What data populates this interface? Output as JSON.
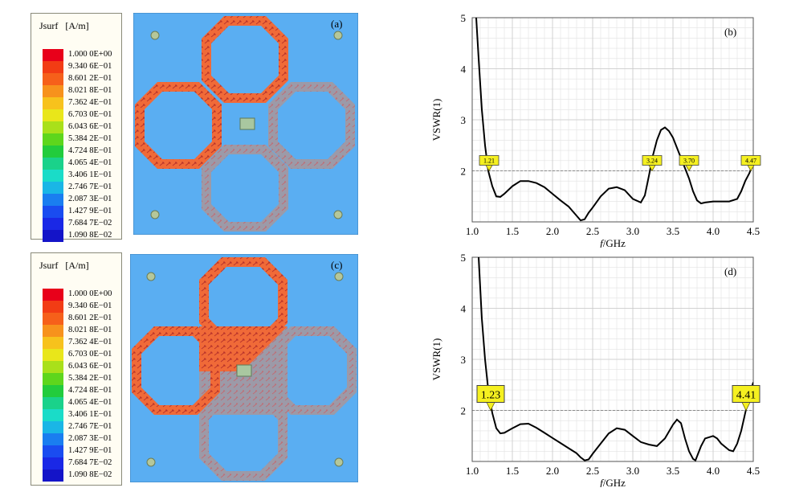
{
  "legend_top": {
    "title": "Jsurf   [A/m]",
    "entries": [
      "1.000 0E+00",
      "9.340 6E−01",
      "8.601 2E−01",
      "8.021 8E−01",
      "7.362 4E−01",
      "6.703 0E−01",
      "6.043 6E−01",
      "5.384 2E−01",
      "4.724 8E−01",
      "4.065 4E−01",
      "3.406 1E−01",
      "2.746 7E−01",
      "2.087 3E−01",
      "1.427 9E−01",
      "7.684 7E−02",
      "1.090 8E−02"
    ]
  },
  "legend_bottom": {
    "title": "Jsurf   [A/m]",
    "entries": [
      "1.000 0E+00",
      "9.340 6E−01",
      "8.601 2E−01",
      "8.021 8E−01",
      "7.362 4E−01",
      "6.703 0E−01",
      "6.043 6E−01",
      "5.384 2E−01",
      "4.724 8E−01",
      "4.065 4E−01",
      "3.406 1E−01",
      "2.746 7E−01",
      "2.087 3E−01",
      "1.427 9E−01",
      "7.684 7E−02",
      "1.090 8E−02"
    ]
  },
  "legend_colors": [
    "#e8001a",
    "#f23c14",
    "#f6601a",
    "#f7921c",
    "#f7c21c",
    "#e9e61a",
    "#a9e01a",
    "#5ed61c",
    "#22cc3c",
    "#1ad28a",
    "#1adcc8",
    "#1ab6e6",
    "#1a7ef0",
    "#1a4cf0",
    "#1a28e6",
    "#1414c8"
  ],
  "sim_a_label": "(a)",
  "sim_c_label": "(c)",
  "colors": {
    "substrate": "#5aaef2",
    "background_metal": "#9c9aa8",
    "hot": "#f06a38",
    "black_curve": "#000000",
    "marker": "#f5f020"
  },
  "chart_data": [
    {
      "type": "line",
      "panel_label": "(b)",
      "ylabel": "VSWR(1)",
      "xlabel_italic": "f",
      "xlabel_rest": "/GHz",
      "xlim": [
        1.0,
        4.5
      ],
      "ylim": [
        1,
        5
      ],
      "xticks": [
        "1.0",
        "1.5",
        "2.0",
        "2.5",
        "3.0",
        "3.5",
        "4.0",
        "4.5"
      ],
      "yticks": [
        "2",
        "3",
        "4",
        "5"
      ],
      "reference_line": 2,
      "grid": true,
      "x": [
        1.05,
        1.08,
        1.12,
        1.16,
        1.2,
        1.25,
        1.3,
        1.35,
        1.4,
        1.5,
        1.6,
        1.7,
        1.8,
        1.9,
        2.0,
        2.1,
        2.2,
        2.3,
        2.35,
        2.4,
        2.45,
        2.5,
        2.6,
        2.7,
        2.8,
        2.9,
        3.0,
        3.1,
        3.15,
        3.2,
        3.25,
        3.3,
        3.35,
        3.4,
        3.45,
        3.5,
        3.55,
        3.6,
        3.65,
        3.7,
        3.75,
        3.8,
        3.85,
        3.9,
        4.0,
        4.1,
        4.2,
        4.3,
        4.35,
        4.4,
        4.45,
        4.47
      ],
      "y": [
        5.0,
        4.2,
        3.2,
        2.5,
        2.0,
        1.7,
        1.5,
        1.49,
        1.55,
        1.7,
        1.8,
        1.8,
        1.76,
        1.68,
        1.55,
        1.42,
        1.3,
        1.12,
        1.03,
        1.05,
        1.18,
        1.28,
        1.5,
        1.65,
        1.68,
        1.62,
        1.45,
        1.38,
        1.52,
        1.9,
        2.3,
        2.6,
        2.8,
        2.85,
        2.78,
        2.65,
        2.45,
        2.25,
        2.05,
        1.85,
        1.6,
        1.42,
        1.36,
        1.38,
        1.4,
        1.4,
        1.4,
        1.45,
        1.6,
        1.8,
        1.95,
        2.03
      ],
      "markers": [
        {
          "x": 1.21,
          "label": "1.21"
        },
        {
          "x": 3.24,
          "label": "3.24"
        },
        {
          "x": 3.7,
          "label": "3.70"
        },
        {
          "x": 4.47,
          "label": "4.47"
        }
      ]
    },
    {
      "type": "line",
      "panel_label": "(d)",
      "ylabel": "VSWR(1)",
      "xlabel_italic": "f",
      "xlabel_rest": "/GHz",
      "xlim": [
        1.0,
        4.5
      ],
      "ylim": [
        1,
        5
      ],
      "xticks": [
        "1.0",
        "1.5",
        "2.0",
        "2.5",
        "3.0",
        "3.5",
        "4.0",
        "4.5"
      ],
      "yticks": [
        "2",
        "3",
        "4",
        "5"
      ],
      "reference_line": 2,
      "grid": true,
      "x": [
        1.08,
        1.12,
        1.16,
        1.2,
        1.25,
        1.3,
        1.35,
        1.4,
        1.5,
        1.6,
        1.7,
        1.8,
        1.9,
        2.0,
        2.1,
        2.2,
        2.3,
        2.35,
        2.4,
        2.45,
        2.5,
        2.6,
        2.7,
        2.8,
        2.9,
        3.0,
        3.1,
        3.2,
        3.3,
        3.4,
        3.5,
        3.55,
        3.6,
        3.65,
        3.7,
        3.75,
        3.78,
        3.85,
        3.9,
        4.0,
        4.05,
        4.1,
        4.2,
        4.25,
        4.3,
        4.35,
        4.4,
        4.45,
        4.5
      ],
      "y": [
        5.0,
        3.8,
        3.0,
        2.4,
        1.95,
        1.65,
        1.55,
        1.56,
        1.65,
        1.73,
        1.74,
        1.66,
        1.56,
        1.46,
        1.36,
        1.26,
        1.16,
        1.08,
        1.02,
        1.04,
        1.15,
        1.35,
        1.55,
        1.65,
        1.62,
        1.5,
        1.38,
        1.33,
        1.3,
        1.45,
        1.72,
        1.82,
        1.75,
        1.45,
        1.2,
        1.05,
        1.02,
        1.3,
        1.45,
        1.5,
        1.45,
        1.35,
        1.22,
        1.2,
        1.35,
        1.6,
        1.95,
        2.3,
        2.55
      ],
      "markers": [
        {
          "x": 1.23,
          "label": "1.23"
        },
        {
          "x": 4.41,
          "label": "4.41"
        }
      ]
    }
  ]
}
